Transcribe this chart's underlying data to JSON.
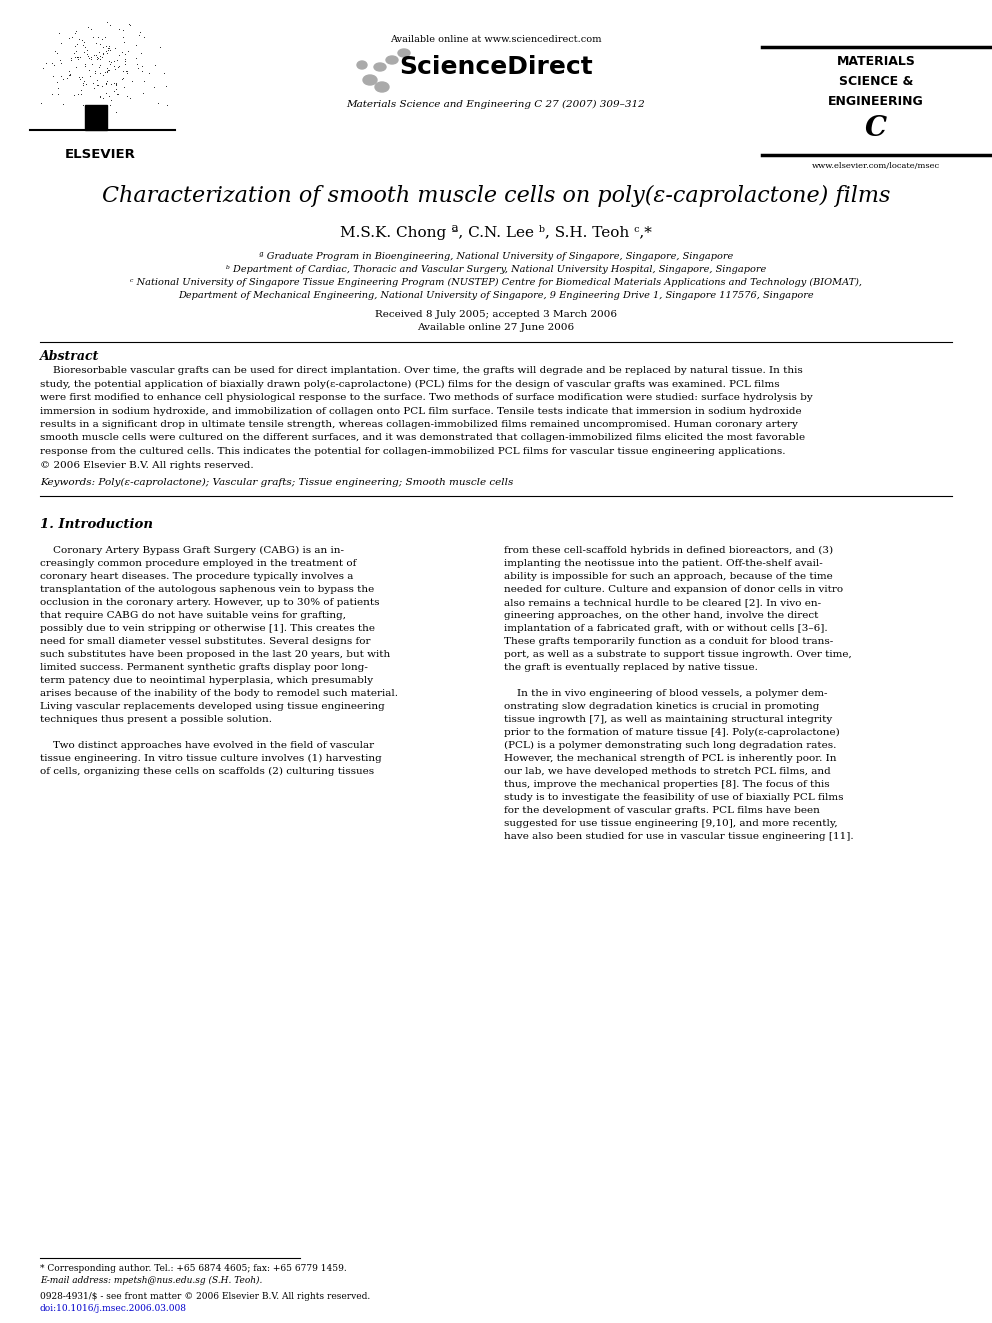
{
  "background_color": "#ffffff",
  "page_width": 9.92,
  "page_height": 13.23,
  "header": {
    "available_online": "Available online at www.sciencedirect.com",
    "journal_line": "Materials Science and Engineering C 27 (2007) 309–312",
    "sciencedirect_text": "ScienceDirect",
    "website": "www.elsevier.com/locate/msec",
    "elsevier_text": "ELSEVIER"
  },
  "title": "Characterization of smooth muscle cells on poly(ε-caprolactone) films",
  "authors": "M.S.K. Chong ª, C.N. Lee ᵇ, S.H. Teoh ᶜ,*",
  "affil_a": "ª Graduate Program in Bioengineering, National University of Singapore, Singapore, Singapore",
  "affil_b": "ᵇ Department of Cardiac, Thoracic and Vascular Surgery, National University Hospital, Singapore, Singapore",
  "affil_c": "ᶜ National University of Singapore Tissue Engineering Program (NUSTEP) Centre for Biomedical Materials Applications and Technology (BIOMAT),",
  "affil_c2": "Department of Mechanical Engineering, National University of Singapore, 9 Engineering Drive 1, Singapore 117576, Singapore",
  "received": "Received 8 July 2005; accepted 3 March 2006",
  "available_date": "Available online 27 June 2006",
  "abstract_title": "Abstract",
  "abstract_lines": [
    "    Bioresorbable vascular grafts can be used for direct implantation. Over time, the grafts will degrade and be replaced by natural tissue. In this",
    "study, the potential application of biaxially drawn poly(ε-caprolactone) (PCL) films for the design of vascular grafts was examined. PCL films",
    "were first modified to enhance cell physiological response to the surface. Two methods of surface modification were studied: surface hydrolysis by",
    "immersion in sodium hydroxide, and immobilization of collagen onto PCL film surface. Tensile tests indicate that immersion in sodium hydroxide",
    "results in a significant drop in ultimate tensile strength, whereas collagen-immobilized films remained uncompromised. Human coronary artery",
    "smooth muscle cells were cultured on the different surfaces, and it was demonstrated that collagen-immobilized films elicited the most favorable",
    "response from the cultured cells. This indicates the potential for collagen-immobilized PCL films for vascular tissue engineering applications.",
    "© 2006 Elsevier B.V. All rights reserved."
  ],
  "keywords": "Keywords: Poly(ε-caprolactone); Vascular grafts; Tissue engineering; Smooth muscle cells",
  "section1_title": "1. Introduction",
  "col1_lines": [
    "    Coronary Artery Bypass Graft Surgery (CABG) is an in-",
    "creasingly common procedure employed in the treatment of",
    "coronary heart diseases. The procedure typically involves a",
    "transplantation of the autologous saphenous vein to bypass the",
    "occlusion in the coronary artery. However, up to 30% of patients",
    "that require CABG do not have suitable veins for grafting,",
    "possibly due to vein stripping or otherwise [1]. This creates the",
    "need for small diameter vessel substitutes. Several designs for",
    "such substitutes have been proposed in the last 20 years, but with",
    "limited success. Permanent synthetic grafts display poor long-",
    "term patency due to neointimal hyperplasia, which presumably",
    "arises because of the inability of the body to remodel such material.",
    "Living vascular replacements developed using tissue engineering",
    "techniques thus present a possible solution.",
    "",
    "    Two distinct approaches have evolved in the field of vascular",
    "tissue engineering. In vitro tissue culture involves (1) harvesting",
    "of cells, organizing these cells on scaffolds (2) culturing tissues"
  ],
  "col2_lines": [
    "from these cell-scaffold hybrids in defined bioreactors, and (3)",
    "implanting the neotissue into the patient. Off-the-shelf avail-",
    "ability is impossible for such an approach, because of the time",
    "needed for culture. Culture and expansion of donor cells in vitro",
    "also remains a technical hurdle to be cleared [2]. In vivo en-",
    "gineering approaches, on the other hand, involve the direct",
    "implantation of a fabricated graft, with or without cells [3–6].",
    "These grafts temporarily function as a conduit for blood trans-",
    "port, as well as a substrate to support tissue ingrowth. Over time,",
    "the graft is eventually replaced by native tissue.",
    "",
    "    In the in vivo engineering of blood vessels, a polymer dem-",
    "onstrating slow degradation kinetics is crucial in promoting",
    "tissue ingrowth [7], as well as maintaining structural integrity",
    "prior to the formation of mature tissue [4]. Poly(ε-caprolactone)",
    "(PCL) is a polymer demonstrating such long degradation rates.",
    "However, the mechanical strength of PCL is inherently poor. In",
    "our lab, we have developed methods to stretch PCL films, and",
    "thus, improve the mechanical properties [8]. The focus of this",
    "study is to investigate the feasibility of use of biaxially PCL films",
    "for the development of vascular grafts. PCL films have been",
    "suggested for use tissue engineering [9,10], and more recently,",
    "have also been studied for use in vascular tissue engineering [11]."
  ],
  "footer1": "* Corresponding author. Tel.: +65 6874 4605; fax: +65 6779 1459.",
  "footer2": "E-mail address: mpetsh@nus.edu.sg (S.H. Teoh).",
  "footer3": "0928-4931/$ - see front matter © 2006 Elsevier B.V. All rights reserved.",
  "footer4": "doi:10.1016/j.msec.2006.03.008"
}
